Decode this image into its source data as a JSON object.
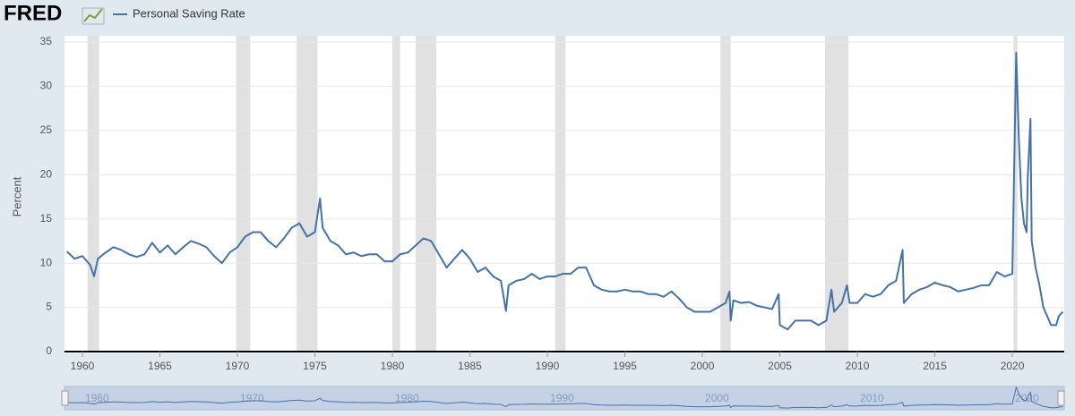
{
  "chart_data": {
    "type": "line",
    "brand": "FRED",
    "ylabel": "Percent",
    "series": [
      {
        "name": "Personal Saving Rate",
        "color": "#4572a7",
        "values": [
          11.3,
          10.5,
          10.8,
          9.8,
          8.5,
          10.5,
          11.2,
          11.8,
          11.5,
          11.0,
          10.7,
          11.0,
          12.3,
          11.2,
          12.0,
          11.0,
          11.8,
          12.5,
          12.2,
          11.8,
          10.8,
          10.0,
          11.2,
          11.8,
          13.0,
          13.5,
          13.5,
          12.5,
          11.8,
          12.8,
          14.0,
          14.5,
          13.0,
          13.5,
          17.3,
          14.0,
          12.5,
          12.0,
          11.0,
          11.2,
          10.8,
          11.0,
          11.0,
          10.2,
          10.2,
          11.0,
          11.2,
          12.0,
          12.8,
          12.5,
          11.0,
          9.5,
          10.5,
          11.5,
          10.5,
          9.0,
          9.5,
          8.5,
          8.0,
          4.6,
          7.5,
          8.0,
          8.2,
          8.8,
          8.2,
          8.5,
          8.5,
          8.8,
          8.8,
          9.5,
          9.5,
          7.5,
          7.0,
          6.8,
          6.8,
          7.0,
          6.8,
          6.8,
          6.5,
          6.5,
          6.2,
          6.8,
          6.0,
          5.0,
          4.5,
          4.5,
          4.5,
          5.0,
          5.5,
          6.8,
          3.5,
          5.8,
          5.5,
          5.6,
          5.2,
          5.0,
          4.8,
          6.5,
          3.0,
          2.5,
          3.5,
          3.5,
          3.5,
          3.0,
          3.5,
          7.0,
          4.5,
          5.5,
          7.5,
          5.5,
          5.5,
          6.5,
          6.2,
          6.5,
          7.5,
          8.0,
          11.5,
          5.5,
          6.5,
          7.0,
          7.3,
          7.8,
          7.5,
          7.3,
          6.8,
          7.0,
          7.2,
          7.5,
          7.5,
          9.0,
          8.5,
          8.8,
          33.8,
          24.0,
          17.5,
          14.5,
          13.5,
          19.8,
          26.3,
          12.5,
          9.5,
          7.5,
          5.0,
          3.0,
          3.0,
          4.0,
          4.5
        ]
      }
    ],
    "x": [
      1959.0,
      1959.5,
      1960.0,
      1960.5,
      1960.75,
      1961.0,
      1961.5,
      1962.0,
      1962.5,
      1963.0,
      1963.5,
      1964.0,
      1964.5,
      1965.0,
      1965.5,
      1966.0,
      1966.5,
      1967.0,
      1967.5,
      1968.0,
      1968.5,
      1969.0,
      1969.5,
      1970.0,
      1970.5,
      1971.0,
      1971.5,
      1972.0,
      1972.5,
      1973.0,
      1973.5,
      1974.0,
      1974.5,
      1975.0,
      1975.33,
      1975.5,
      1976.0,
      1976.5,
      1977.0,
      1977.5,
      1978.0,
      1978.5,
      1979.0,
      1979.5,
      1980.0,
      1980.5,
      1981.0,
      1981.5,
      1982.0,
      1982.5,
      1983.0,
      1983.5,
      1984.0,
      1984.5,
      1985.0,
      1985.5,
      1986.0,
      1986.5,
      1987.0,
      1987.33,
      1987.5,
      1988.0,
      1988.5,
      1989.0,
      1989.5,
      1990.0,
      1990.5,
      1991.0,
      1991.5,
      1992.0,
      1992.5,
      1993.0,
      1993.5,
      1994.0,
      1994.5,
      1995.0,
      1995.5,
      1996.0,
      1996.5,
      1997.0,
      1997.5,
      1998.0,
      1998.5,
      1999.0,
      1999.5,
      2000.0,
      2000.5,
      2001.0,
      2001.5,
      2001.75,
      2001.83,
      2002.0,
      2002.5,
      2003.0,
      2003.5,
      2004.0,
      2004.5,
      2004.92,
      2005.0,
      2005.5,
      2006.0,
      2006.5,
      2007.0,
      2007.5,
      2008.0,
      2008.33,
      2008.5,
      2009.0,
      2009.33,
      2009.5,
      2010.0,
      2010.5,
      2011.0,
      2011.5,
      2012.0,
      2012.5,
      2012.92,
      2013.0,
      2013.5,
      2014.0,
      2014.5,
      2015.0,
      2015.5,
      2016.0,
      2016.5,
      2017.0,
      2017.5,
      2018.0,
      2018.5,
      2019.0,
      2019.5,
      2020.0,
      2020.25,
      2020.42,
      2020.58,
      2020.75,
      2020.92,
      2021.0,
      2021.17,
      2021.25,
      2021.5,
      2021.75,
      2022.0,
      2022.5,
      2022.83,
      2023.0,
      2023.25
    ],
    "recessions": [
      [
        1960.33,
        1961.08
      ],
      [
        1969.92,
        1970.83
      ],
      [
        1973.83,
        1975.17
      ],
      [
        1980.0,
        1980.5
      ],
      [
        1981.5,
        1982.83
      ],
      [
        1990.5,
        1991.17
      ],
      [
        2001.17,
        2001.83
      ],
      [
        2007.92,
        2009.42
      ],
      [
        2020.08,
        2020.33
      ]
    ],
    "xlim": [
      1959.0,
      2023.35
    ],
    "xticks": [
      1960,
      1965,
      1970,
      1975,
      1980,
      1985,
      1990,
      1995,
      2000,
      2005,
      2010,
      2015,
      2020
    ],
    "ylim": [
      0,
      35
    ],
    "yticks": [
      0,
      5,
      10,
      15,
      20,
      25,
      30,
      35
    ],
    "navigator_xticks": [
      1960,
      1970,
      1980,
      1990,
      2000,
      2010,
      2020
    ],
    "grid": true
  }
}
